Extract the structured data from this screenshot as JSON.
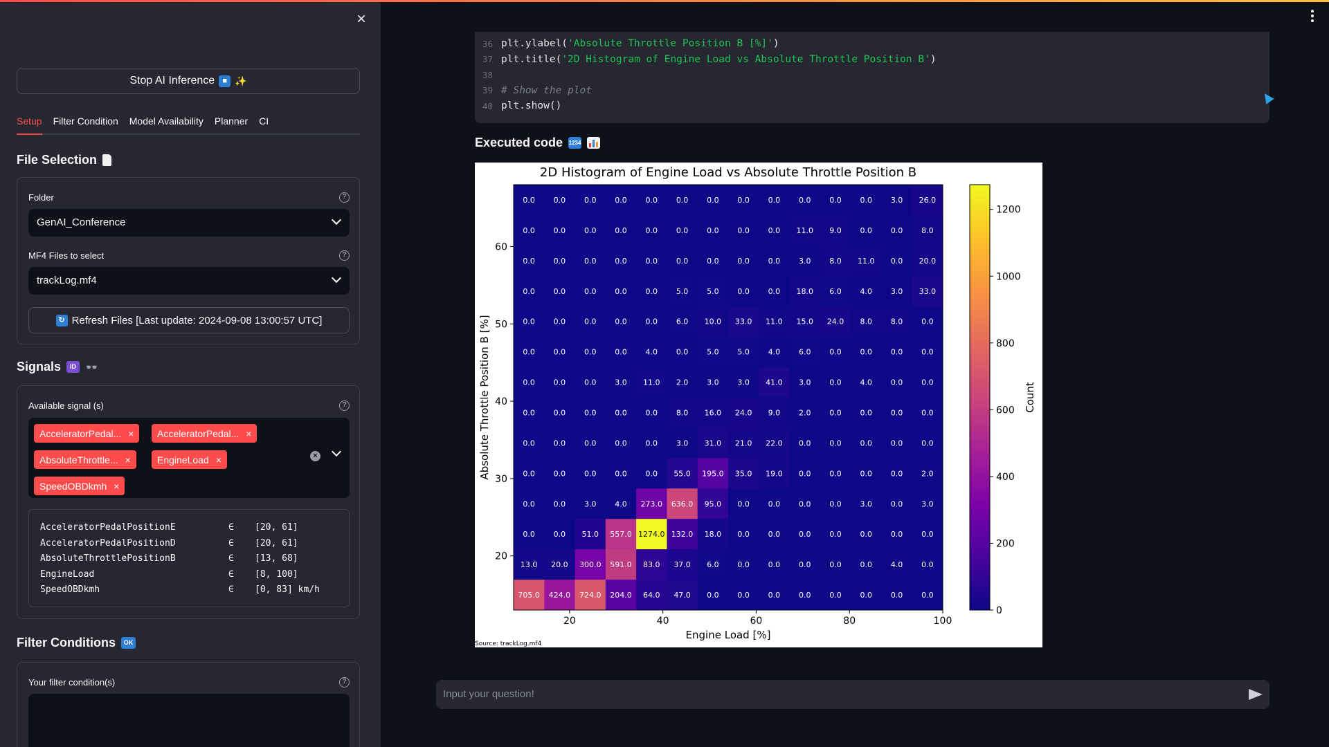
{
  "sidebar": {
    "stop_button": "Stop AI Inference",
    "tabs": [
      "Setup",
      "Filter Condition",
      "Model Availability",
      "Planner",
      "CI"
    ],
    "file_selection": {
      "title": "File Selection",
      "folder_label": "Folder",
      "folder_value": "GenAI_Conference",
      "mf4_label": "MF4 Files to select",
      "mf4_value": "trackLog.mf4",
      "refresh_button": "Refresh Files [Last update: 2024-09-08 13:00:57 UTC]"
    },
    "signals": {
      "title": "Signals",
      "available_label": "Available signal (s)",
      "chips": [
        "AcceleratorPedal...",
        "AcceleratorPedal...",
        "AbsoluteThrottle...",
        "EngineLoad",
        "SpeedOBDkmh"
      ],
      "ranges": [
        {
          "name": "AcceleratorPedalPositionE",
          "symbol": "∈",
          "range": "[20, 61]",
          "unit": ""
        },
        {
          "name": "AcceleratorPedalPositionD",
          "symbol": "∈",
          "range": "[20, 61]",
          "unit": ""
        },
        {
          "name": "AbsoluteThrottlePositionB",
          "symbol": "∈",
          "range": "[13, 68]",
          "unit": ""
        },
        {
          "name": "EngineLoad",
          "symbol": "∈",
          "range": "[8, 100]",
          "unit": ""
        },
        {
          "name": "SpeedOBDkmh",
          "symbol": "∈",
          "range": "[0, 83]",
          "unit": "km/h"
        }
      ]
    },
    "filter": {
      "title": "Filter Conditions",
      "badge": "OK",
      "label": "Your filter condition(s)"
    }
  },
  "code": {
    "lines": [
      {
        "n": "36",
        "pre": "plt.ylabel(",
        "str": "'Absolute Throttle Position B [%]'",
        "post": ")",
        "comment": ""
      },
      {
        "n": "37",
        "pre": "plt.title(",
        "str": "'2D Histogram of Engine Load vs Absolute Throttle Position B'",
        "post": ")",
        "comment": ""
      },
      {
        "n": "38",
        "pre": "",
        "str": "",
        "post": "",
        "comment": ""
      },
      {
        "n": "39",
        "pre": "",
        "str": "",
        "post": "",
        "comment": "# Show the plot"
      },
      {
        "n": "40",
        "pre": "plt.show()",
        "str": "",
        "post": "",
        "comment": ""
      }
    ]
  },
  "executed_title": "Executed code",
  "chart_data": {
    "type": "heatmap",
    "title": "2D Histogram of Engine Load vs Absolute Throttle Position B",
    "xlabel": "Engine Load [%]",
    "ylabel": "Absolute Throttle Position B [%]",
    "colorbar_label": "Count",
    "source": "Source: trackLog.mf4",
    "xlim": [
      8,
      100
    ],
    "ylim": [
      13,
      68
    ],
    "xticks": [
      20,
      40,
      60,
      80,
      100
    ],
    "yticks": [
      20,
      30,
      40,
      50,
      60
    ],
    "cticks": [
      0,
      200,
      400,
      600,
      800,
      1000,
      1200
    ],
    "cmax": 1274,
    "colormap": "plasma",
    "rows_top_to_bottom": [
      [
        0.0,
        0.0,
        0.0,
        0.0,
        0.0,
        0.0,
        0.0,
        0.0,
        0.0,
        0.0,
        0.0,
        0.0,
        3.0,
        26.0
      ],
      [
        0.0,
        0.0,
        0.0,
        0.0,
        0.0,
        0.0,
        0.0,
        0.0,
        0.0,
        11.0,
        9.0,
        0.0,
        0.0,
        8.0
      ],
      [
        0.0,
        0.0,
        0.0,
        0.0,
        0.0,
        0.0,
        0.0,
        0.0,
        0.0,
        3.0,
        8.0,
        11.0,
        0.0,
        20.0
      ],
      [
        0.0,
        0.0,
        0.0,
        0.0,
        0.0,
        5.0,
        5.0,
        0.0,
        0.0,
        18.0,
        6.0,
        4.0,
        3.0,
        33.0
      ],
      [
        0.0,
        0.0,
        0.0,
        0.0,
        0.0,
        6.0,
        10.0,
        33.0,
        11.0,
        15.0,
        24.0,
        8.0,
        8.0,
        0.0
      ],
      [
        0.0,
        0.0,
        0.0,
        0.0,
        4.0,
        0.0,
        5.0,
        5.0,
        4.0,
        6.0,
        0.0,
        0.0,
        0.0,
        0.0
      ],
      [
        0.0,
        0.0,
        0.0,
        3.0,
        11.0,
        2.0,
        3.0,
        3.0,
        41.0,
        3.0,
        0.0,
        4.0,
        0.0,
        0.0
      ],
      [
        0.0,
        0.0,
        0.0,
        0.0,
        0.0,
        8.0,
        16.0,
        24.0,
        9.0,
        2.0,
        0.0,
        0.0,
        0.0,
        0.0
      ],
      [
        0.0,
        0.0,
        0.0,
        0.0,
        0.0,
        3.0,
        31.0,
        21.0,
        22.0,
        0.0,
        0.0,
        0.0,
        0.0,
        0.0
      ],
      [
        0.0,
        0.0,
        0.0,
        0.0,
        0.0,
        55.0,
        195.0,
        35.0,
        19.0,
        0.0,
        0.0,
        0.0,
        0.0,
        2.0
      ],
      [
        0.0,
        0.0,
        3.0,
        4.0,
        273.0,
        636.0,
        95.0,
        0.0,
        0.0,
        0.0,
        0.0,
        3.0,
        0.0,
        3.0
      ],
      [
        0.0,
        0.0,
        51.0,
        557.0,
        1274.0,
        132.0,
        18.0,
        0.0,
        0.0,
        0.0,
        0.0,
        0.0,
        0.0,
        0.0
      ],
      [
        13.0,
        20.0,
        300.0,
        591.0,
        83.0,
        37.0,
        6.0,
        0.0,
        0.0,
        0.0,
        0.0,
        0.0,
        4.0,
        0.0
      ],
      [
        705.0,
        424.0,
        724.0,
        204.0,
        64.0,
        47.0,
        0.0,
        0.0,
        0.0,
        0.0,
        0.0,
        0.0,
        0.0,
        0.0
      ]
    ]
  },
  "chat": {
    "placeholder": "Input your question!"
  }
}
